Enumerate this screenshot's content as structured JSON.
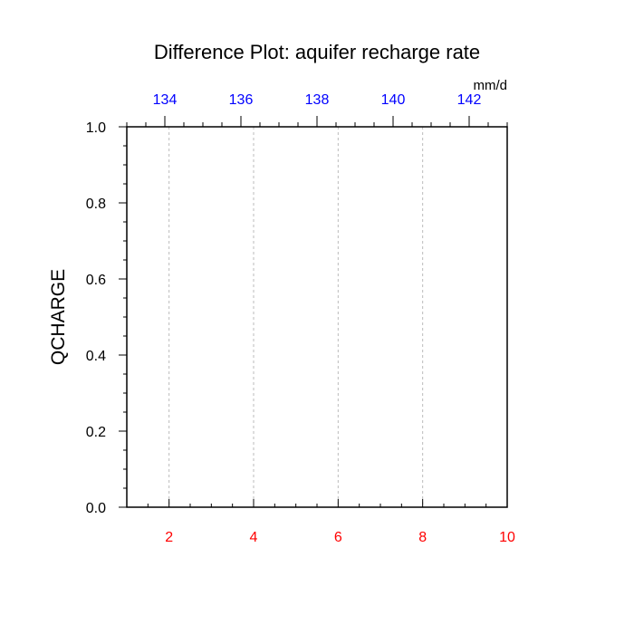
{
  "chart_data": {
    "type": "line",
    "title": "Difference Plot: aquifer recharge rate",
    "ylabel": "QCHARGE",
    "top_units": "mm/d",
    "ylim": [
      0,
      1
    ],
    "xlim_bottom": [
      1,
      10
    ],
    "xlim_top": [
      133,
      143
    ],
    "y_ticks": [
      "0.0",
      "0.2",
      "0.4",
      "0.6",
      "0.8",
      "1.0"
    ],
    "bottom_ticks": [
      "2",
      "4",
      "6",
      "8",
      "10"
    ],
    "top_ticks": [
      "134",
      "136",
      "138",
      "140",
      "142"
    ],
    "bottom_tick_color": "#ff0000",
    "top_tick_color": "#0000ff",
    "grid": "vertical dashed",
    "series": []
  }
}
